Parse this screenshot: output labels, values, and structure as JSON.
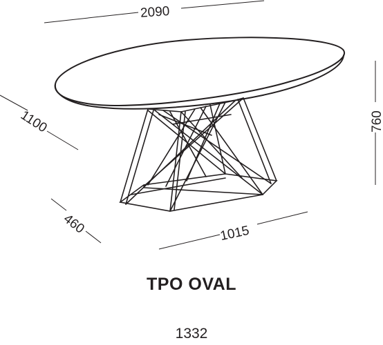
{
  "dimensions": {
    "length": "2090",
    "width": "1100",
    "height": "760",
    "base_depth": "460",
    "base_width": "1015"
  },
  "product": {
    "name": "TPO OVAL",
    "code": "1332"
  }
}
